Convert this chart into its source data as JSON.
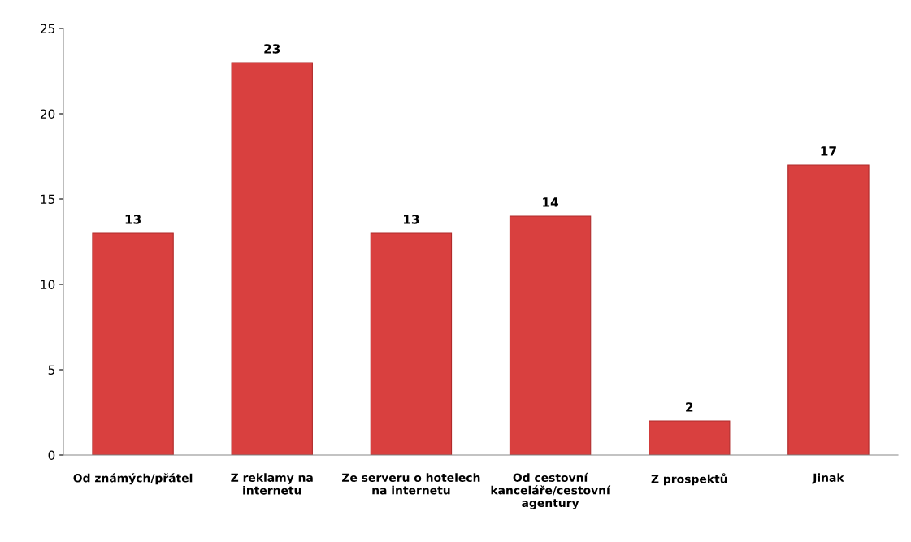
{
  "chart_data": {
    "type": "bar",
    "categories": [
      "Od známých/přátel",
      "Z reklamy na\ninternetu",
      "Ze serveru o hotelech\nna internetu",
      "Od cestovní\nkanceláře/cestovní\nagentury",
      "Z prospektů",
      "Jinak"
    ],
    "values": [
      13,
      23,
      13,
      14,
      2,
      17
    ],
    "color": "#d9403f",
    "ylim": [
      0,
      25
    ],
    "yticks": [
      0,
      5,
      10,
      15,
      20,
      25
    ],
    "grid": false,
    "data_labels": true
  }
}
